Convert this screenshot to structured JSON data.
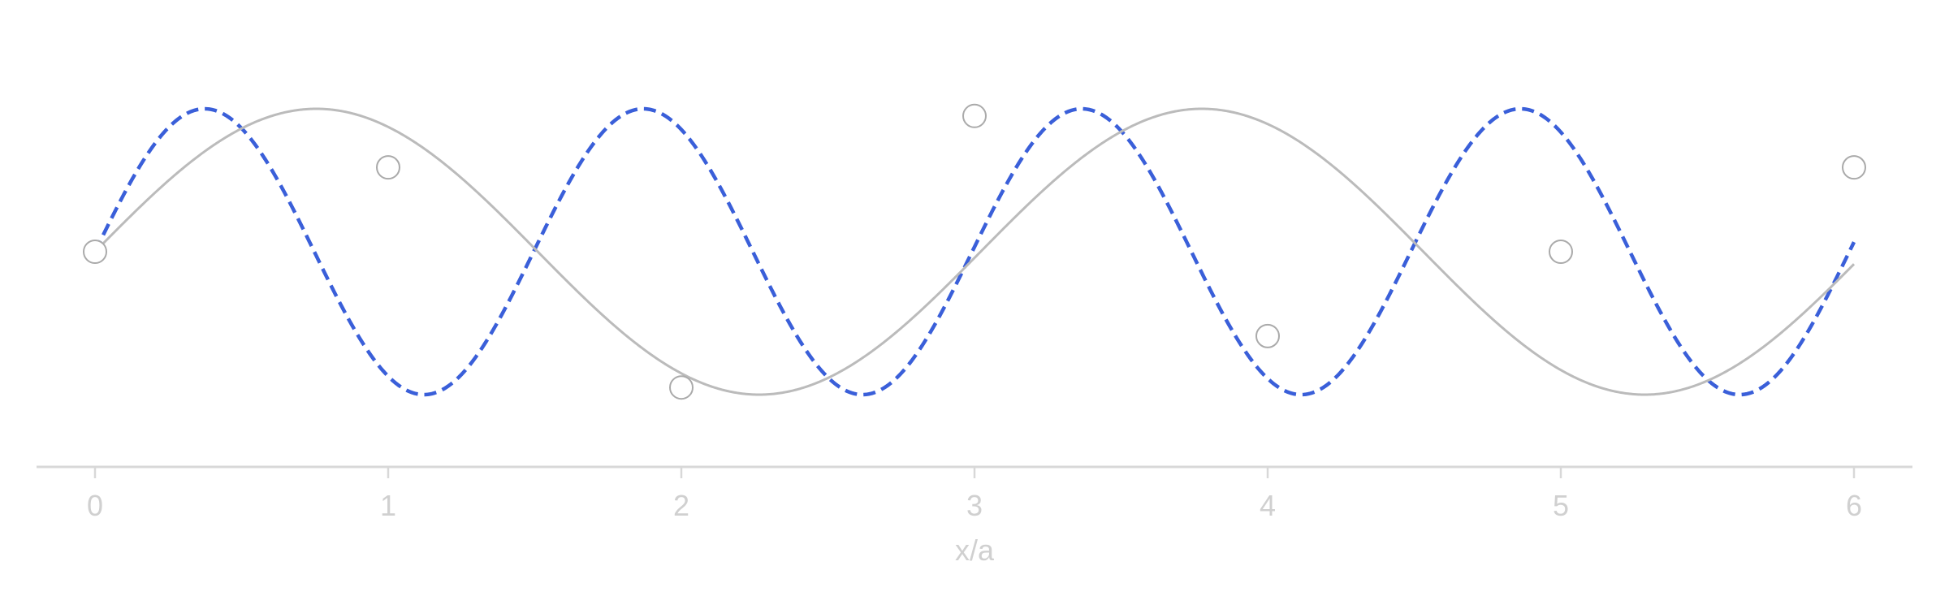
{
  "chart_data": {
    "type": "line",
    "title": "",
    "xlabel": "x/a",
    "ylabel": "",
    "xlim": [
      -0.2,
      6.2
    ],
    "ylim": [
      -1.55,
      1.55
    ],
    "x_ticks": [
      "0",
      "1",
      "2",
      "3",
      "4",
      "5",
      "6"
    ],
    "grid": false,
    "legend": "none",
    "series": [
      {
        "style": "dashed",
        "color": "#3a5fd9",
        "function": "sin",
        "wavenumber_per_a": 4.2,
        "amplitude": 1,
        "x_range": [
          0,
          6
        ]
      },
      {
        "style": "solid",
        "color": "#bbbbbb",
        "function": "sin",
        "wavenumber_per_a": 2.08,
        "amplitude": 1,
        "x_range": [
          0,
          6
        ]
      }
    ],
    "sample_points": {
      "x": [
        0,
        1,
        2,
        3,
        4,
        5,
        6
      ],
      "y": [
        0.0,
        0.59,
        -0.95,
        0.95,
        -0.59,
        0.0,
        0.59
      ]
    }
  }
}
